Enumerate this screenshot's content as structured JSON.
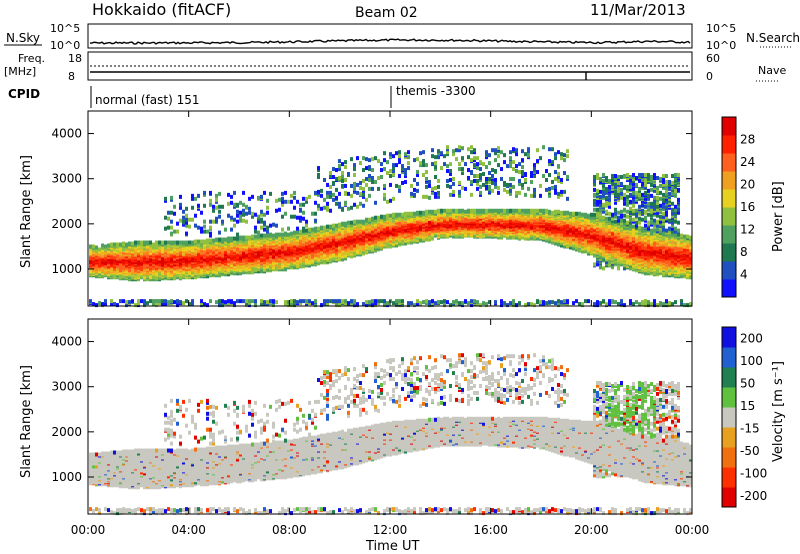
{
  "header": {
    "station": "Hokkaido (fitACF)",
    "beam": "Beam 02",
    "date": "11/Mar/2013"
  },
  "top_panels": {
    "nsky_label": "N.Sky",
    "nsky_ticks": [
      "10^5",
      "10^0"
    ],
    "nsearch_label": "N.Search",
    "nsearch_ticks": [
      "10^5",
      "10^0"
    ],
    "freq_label_1": "Freq.",
    "freq_label_2": "[MHz]",
    "freq_ticks": [
      "18",
      "8"
    ],
    "nave_label": "Nave",
    "nave_ticks": [
      "60",
      "0"
    ],
    "cpid_label": "CPID",
    "cpid_entries": [
      {
        "text": "normal (fast) 151",
        "start": "00:00"
      },
      {
        "text": "themis -3300",
        "start": "12:00"
      }
    ]
  },
  "chart_data": [
    {
      "type": "heatmap",
      "title": "",
      "xlabel": "",
      "ylabel": "Slant Range [km]",
      "x_ticks": [
        "00:00",
        "04:00",
        "08:00",
        "12:00",
        "16:00",
        "20:00",
        "00:00"
      ],
      "y_ticks": [
        "1000",
        "2000",
        "3000",
        "4000"
      ],
      "ylim": [
        180,
        4500
      ],
      "colorbar": {
        "label": "Power [dB]",
        "range": [
          0,
          32
        ],
        "ticks": [
          "4",
          "8",
          "12",
          "16",
          "20",
          "24",
          "28"
        ],
        "colors": [
          "#1010ff",
          "#2050c0",
          "#207850",
          "#50a060",
          "#90c040",
          "#e6d020",
          "#f0a020",
          "#ff6020",
          "#ff2000",
          "#e00000"
        ]
      },
      "echo_band": {
        "description_series": "main scatter lower edge / upper edge vs UT hour",
        "hours": [
          0,
          2,
          4,
          6,
          8,
          10,
          12,
          14,
          16,
          18,
          20,
          22,
          24
        ],
        "lower_km": [
          850,
          750,
          800,
          900,
          1000,
          1200,
          1500,
          1700,
          1700,
          1650,
          1300,
          900,
          800
        ],
        "upper_km": [
          1500,
          1600,
          1600,
          1700,
          1800,
          2000,
          2200,
          2300,
          2300,
          2300,
          2200,
          1900,
          1700
        ]
      }
    },
    {
      "type": "heatmap",
      "title": "",
      "xlabel": "Time UT",
      "ylabel": "Slant Range [km]",
      "x_ticks": [
        "00:00",
        "04:00",
        "08:00",
        "12:00",
        "16:00",
        "20:00",
        "00:00"
      ],
      "y_ticks": [
        "1000",
        "2000",
        "3000",
        "4000"
      ],
      "ylim": [
        180,
        4500
      ],
      "colorbar": {
        "label": "Velocity [m s⁻¹]",
        "range": [
          -250,
          250
        ],
        "ticks": [
          "200",
          "100",
          "50",
          "15",
          "-15",
          "-50",
          "-100",
          "-200"
        ],
        "colors": [
          "#1010e0",
          "#2060d0",
          "#208050",
          "#60c040",
          "#c8c8c0",
          "#e8a020",
          "#f07010",
          "#ff3000",
          "#e00000"
        ]
      }
    }
  ]
}
